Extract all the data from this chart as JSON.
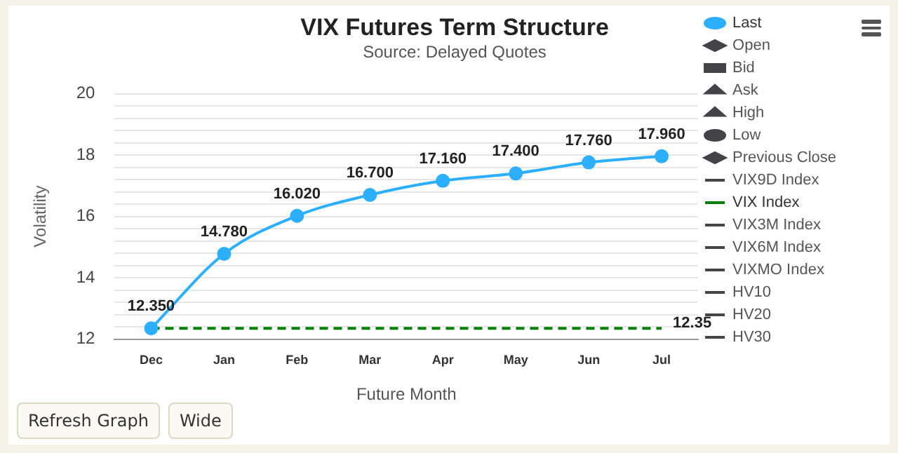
{
  "chart_data": {
    "type": "line",
    "title": "VIX Futures Term Structure",
    "subtitle": "Source: Delayed Quotes",
    "xlabel": "Future Month",
    "ylabel": "Volatility",
    "categories": [
      "Dec",
      "Jan",
      "Feb",
      "Mar",
      "Apr",
      "May",
      "Jun",
      "Jul"
    ],
    "series": [
      {
        "name": "Last",
        "color": "#2caffe",
        "marker": "circle",
        "line_style": "solid",
        "values": [
          12.35,
          14.78,
          16.02,
          16.7,
          17.16,
          17.4,
          17.76,
          17.96
        ],
        "value_labels": [
          "12.350",
          "14.780",
          "16.020",
          "16.700",
          "17.160",
          "17.400",
          "17.760",
          "17.960"
        ]
      },
      {
        "name": "Open",
        "color": "#434348",
        "marker": "diamond",
        "line_style": "solid",
        "values": [
          null,
          null,
          null,
          null,
          null,
          null,
          null,
          null
        ]
      },
      {
        "name": "Bid",
        "color": "#434348",
        "marker": "square",
        "line_style": "solid",
        "values": [
          null,
          null,
          null,
          null,
          null,
          null,
          null,
          null
        ]
      },
      {
        "name": "Ask",
        "color": "#434348",
        "marker": "triangle",
        "line_style": "solid",
        "values": [
          null,
          null,
          null,
          null,
          null,
          null,
          null,
          null
        ]
      },
      {
        "name": "High",
        "color": "#434348",
        "marker": "triangle",
        "line_style": "solid",
        "values": [
          null,
          null,
          null,
          null,
          null,
          null,
          null,
          null
        ]
      },
      {
        "name": "Low",
        "color": "#434348",
        "marker": "circle",
        "line_style": "solid",
        "values": [
          null,
          null,
          null,
          null,
          null,
          null,
          null,
          null
        ]
      },
      {
        "name": "Previous Close",
        "color": "#434348",
        "marker": "diamond",
        "line_style": "solid",
        "values": [
          null,
          null,
          null,
          null,
          null,
          null,
          null,
          null
        ]
      },
      {
        "name": "VIX9D Index",
        "color": "#434348",
        "marker": "none",
        "line_style": "solid",
        "values": [
          null,
          null,
          null,
          null,
          null,
          null,
          null,
          null
        ]
      },
      {
        "name": "VIX Index",
        "color": "#008000",
        "marker": "none",
        "line_style": "dashed",
        "values": [
          12.35,
          12.35,
          12.35,
          12.35,
          12.35,
          12.35,
          12.35,
          12.35
        ],
        "value_labels": [
          null,
          null,
          null,
          null,
          null,
          null,
          null,
          "12.35"
        ]
      },
      {
        "name": "VIX3M Index",
        "color": "#434348",
        "marker": "none",
        "line_style": "solid",
        "values": [
          null,
          null,
          null,
          null,
          null,
          null,
          null,
          null
        ]
      },
      {
        "name": "VIX6M Index",
        "color": "#434348",
        "marker": "none",
        "line_style": "dotted",
        "values": [
          null,
          null,
          null,
          null,
          null,
          null,
          null,
          null
        ]
      },
      {
        "name": "VIXMO Index",
        "color": "#434348",
        "marker": "none",
        "line_style": "dashed",
        "values": [
          null,
          null,
          null,
          null,
          null,
          null,
          null,
          null
        ]
      },
      {
        "name": "HV10",
        "color": "#434348",
        "marker": "none",
        "line_style": "dashed",
        "values": [
          null,
          null,
          null,
          null,
          null,
          null,
          null,
          null
        ]
      },
      {
        "name": "HV20",
        "color": "#434348",
        "marker": "none",
        "line_style": "dashed",
        "values": [
          null,
          null,
          null,
          null,
          null,
          null,
          null,
          null
        ]
      },
      {
        "name": "HV30",
        "color": "#434348",
        "marker": "none",
        "line_style": "dashed",
        "values": [
          null,
          null,
          null,
          null,
          null,
          null,
          null,
          null
        ]
      }
    ],
    "ylim": [
      12,
      20
    ],
    "yticks": [
      12,
      {
        "value": 12.4,
        "label": null
      },
      {
        "value": 12.8,
        "label": null
      },
      {
        "value": 13.2,
        "label": null
      },
      {
        "value": 13.6,
        "label": null
      },
      14,
      {
        "value": 14.4,
        "label": null
      },
      {
        "value": 14.8,
        "label": null
      },
      {
        "value": 15.2,
        "label": null
      },
      {
        "value": 15.6,
        "label": null
      },
      16,
      {
        "value": 16.4,
        "label": null
      },
      {
        "value": 16.8,
        "label": null
      },
      {
        "value": 17.2,
        "label": null
      },
      {
        "value": 17.6,
        "label": null
      },
      18,
      {
        "value": 18.4,
        "label": null
      },
      {
        "value": 18.8,
        "label": null
      },
      {
        "value": 19.2,
        "label": null
      },
      {
        "value": 19.6,
        "label": null
      },
      20
    ],
    "grid": "y",
    "legend": "right",
    "annotations": [
      "Refresh Graph",
      "Wide"
    ]
  }
}
